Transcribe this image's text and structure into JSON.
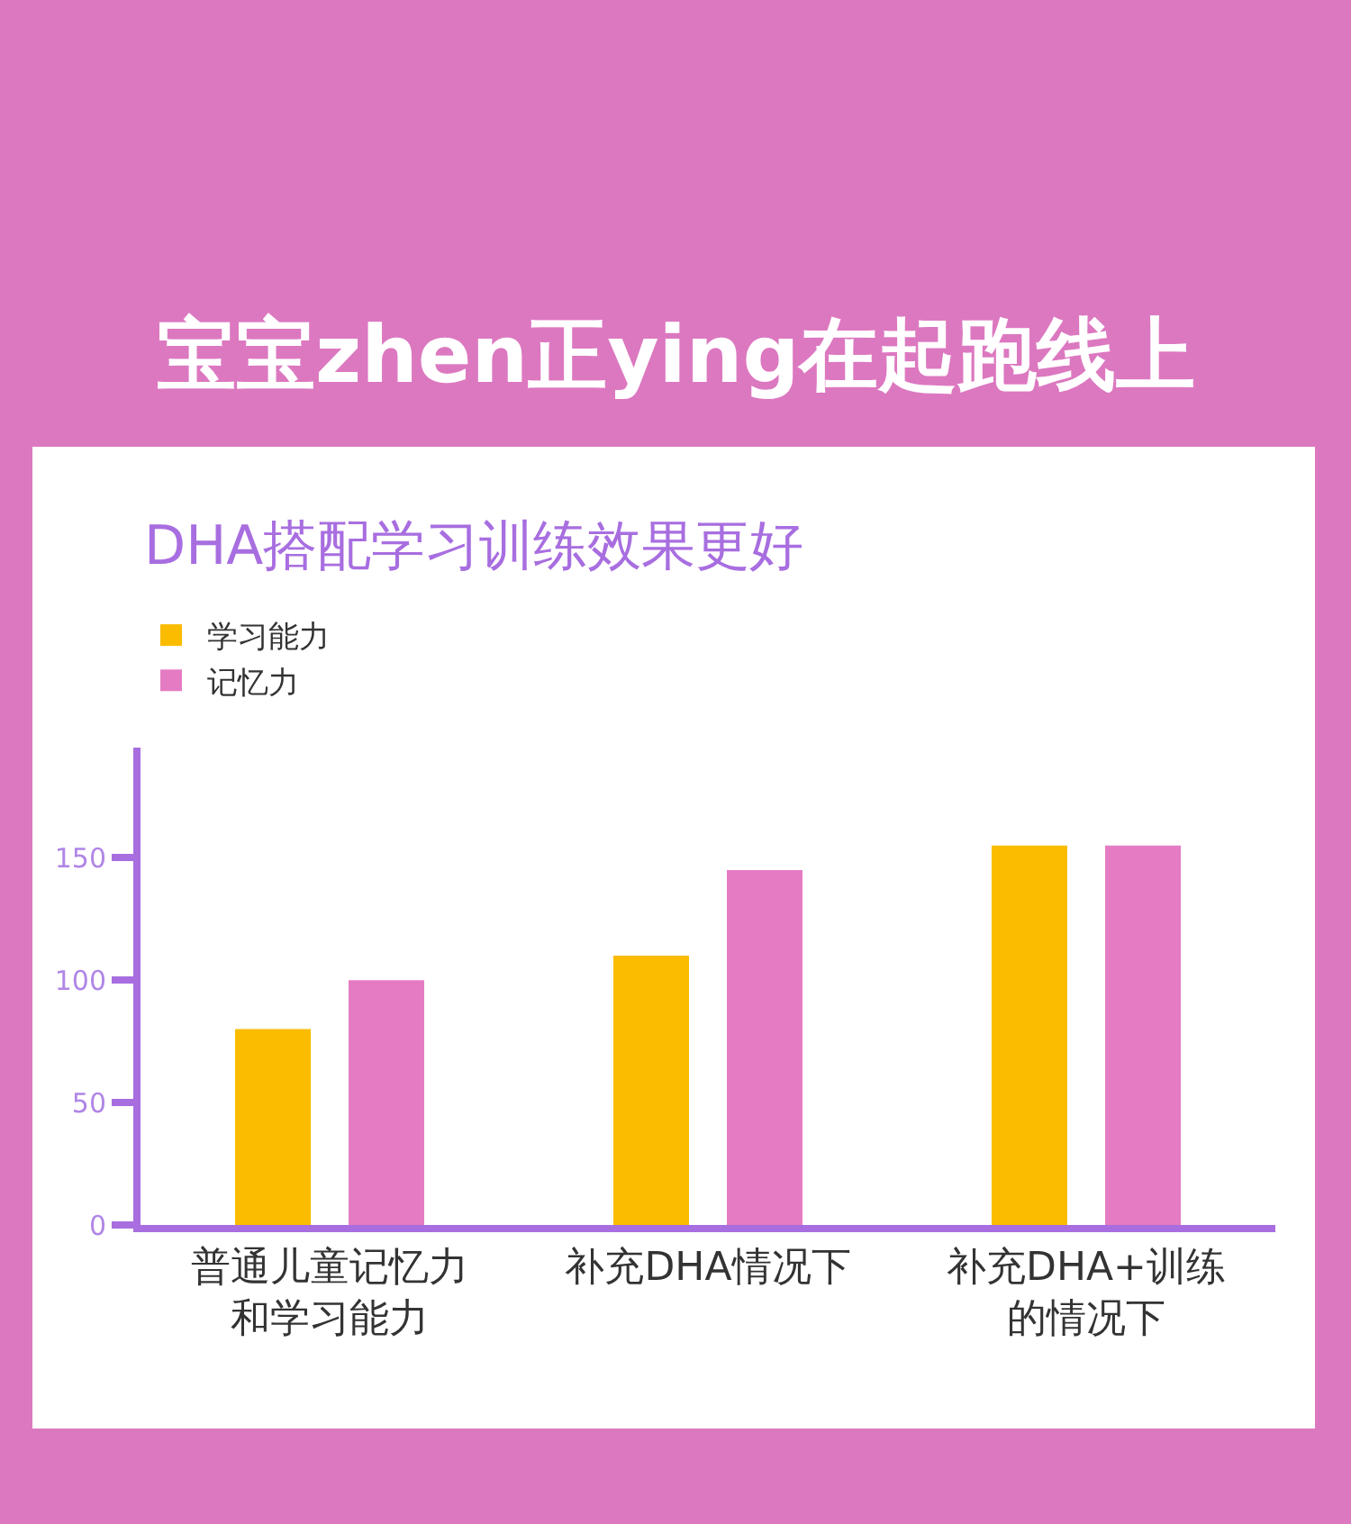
{
  "chart_data": {
    "type": "bar",
    "title": "宝宝zhen正ying在起跑线上",
    "subtitle": "DHA搭配学习训练效果更好",
    "categories": [
      "普通儿童记忆力和学习能力",
      "补充DHA情况下",
      "补充DHA+训练的情况下"
    ],
    "series": [
      {
        "name": "学习能力",
        "color": "#fbbc00",
        "values": [
          80,
          110,
          155
        ]
      },
      {
        "name": "记忆力",
        "color": "#e57cc3",
        "values": [
          100,
          145,
          155
        ]
      }
    ],
    "ylim": [
      0,
      195
    ],
    "yticks": [
      0,
      50,
      100,
      150
    ],
    "legend": "top left"
  }
}
